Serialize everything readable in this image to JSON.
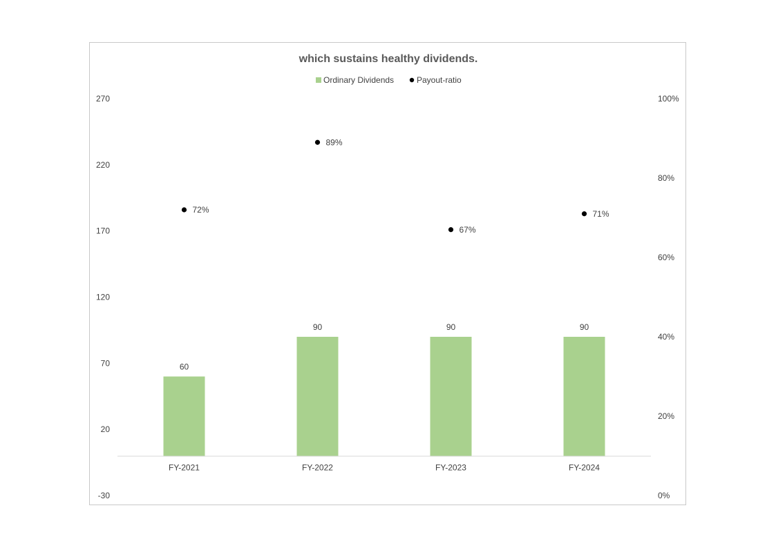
{
  "chart_data": {
    "type": "bar",
    "title": "which sustains healthy dividends.",
    "categories": [
      "FY-2021",
      "FY-2022",
      "FY-2023",
      "FY-2024"
    ],
    "series": [
      {
        "name": "Ordinary Dividends",
        "type": "bar",
        "axis": "left",
        "color": "#a9d18e",
        "values": [
          60,
          90,
          90,
          90
        ],
        "labels": [
          "60",
          "90",
          "90",
          "90"
        ]
      },
      {
        "name": "Payout-ratio",
        "type": "scatter",
        "axis": "right",
        "color": "#000000",
        "values": [
          0.72,
          0.89,
          0.67,
          0.71
        ],
        "labels": [
          "72%",
          "89%",
          "67%",
          "71%"
        ]
      }
    ],
    "y_left": {
      "min": -30,
      "max": 270,
      "ticks": [
        "270",
        "220",
        "170",
        "120",
        "70",
        "20",
        "-30"
      ]
    },
    "y_right": {
      "min": 0,
      "max": 1,
      "ticks": [
        "100%",
        "80%",
        "60%",
        "40%",
        "20%",
        "0%"
      ]
    },
    "grid": false,
    "legend_position": "top-center"
  }
}
